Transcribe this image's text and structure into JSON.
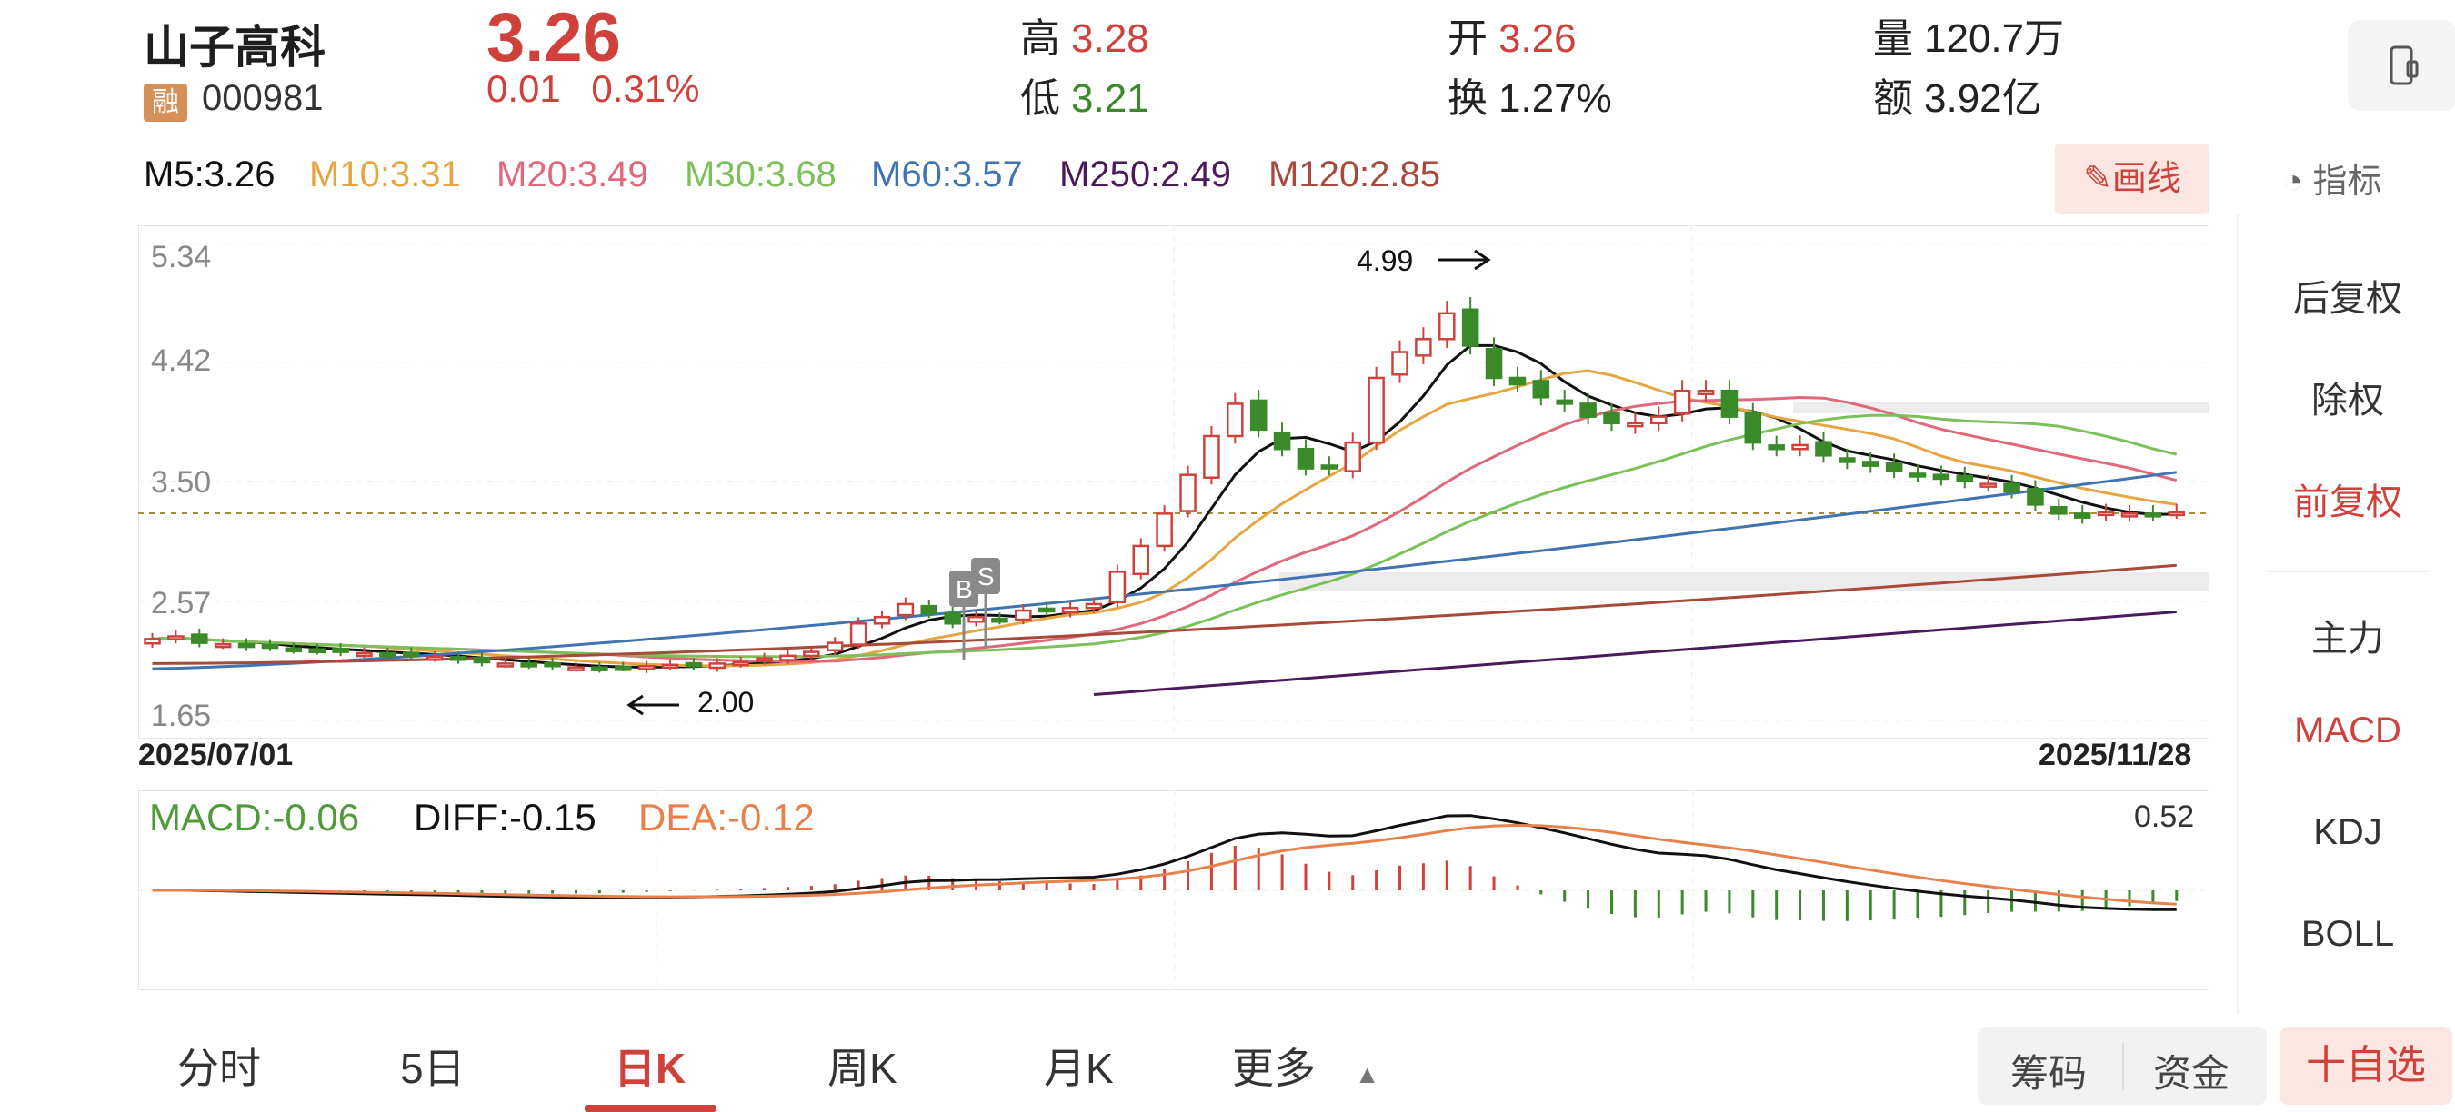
{
  "stock": {
    "name": "山子高科",
    "rong": "融",
    "code": "000981",
    "price": "3.26",
    "change": "0.01",
    "change_pct": "0.31%"
  },
  "quote": {
    "high_label": "高",
    "high": "3.28",
    "low_label": "低",
    "low": "3.21",
    "open_label": "开",
    "open": "3.26",
    "turnover_label": "换",
    "turnover": "1.27%",
    "volume_label": "量",
    "volume": "120.7万",
    "amount_label": "额",
    "amount": "3.92亿"
  },
  "ma": {
    "m5": "M5:3.26",
    "m10": "M10:3.31",
    "m20": "M20:3.49",
    "m30": "M30:3.68",
    "m60": "M60:3.57",
    "m250": "M250:2.49",
    "m120": "M120:2.85"
  },
  "colors": {
    "red": "#d0413c",
    "green": "#3b8a2a",
    "m5": "#111111",
    "m10": "#e5a642",
    "m20": "#e0687a",
    "m30": "#7cc05a",
    "m60": "#3f74b0",
    "m250": "#4a1a5a",
    "m120": "#a84a3a"
  },
  "toolbar": {
    "draw_line": "画线",
    "indicator": "指标"
  },
  "price_axis": [
    "5.34",
    "4.42",
    "3.50",
    "2.57",
    "1.65"
  ],
  "dates": {
    "start": "2025/07/01",
    "end": "2025/11/28"
  },
  "annotations": {
    "high": "4.99",
    "low": "2.00",
    "buy": "B",
    "sell": "S"
  },
  "macd": {
    "macd": "MACD:-0.06",
    "diff": "DIFF:-0.15",
    "dea": "DEA:-0.12",
    "max": "0.52"
  },
  "side_menu": [
    "后复权",
    "除权",
    "前复权",
    "主力",
    "MACD",
    "KDJ",
    "BOLL"
  ],
  "tabs": [
    "分时",
    "5日",
    "日K",
    "周K",
    "月K",
    "更多"
  ],
  "bottom_buttons": {
    "chips": "筹码",
    "funds": "资金",
    "add_watch": "十自选"
  },
  "icons": {
    "phone": "phone-icon",
    "gauge": "gauge-icon",
    "pencil": "pencil-icon",
    "more": "triangle-up-icon"
  },
  "chart_data": {
    "type": "candlestick",
    "x_range": [
      "2025/07/01",
      "2025/11/28"
    ],
    "y_range": [
      1.65,
      5.34
    ],
    "y_ticks": [
      5.34,
      4.42,
      3.5,
      2.57,
      1.65
    ],
    "last_price": 3.26,
    "marked_high": 4.99,
    "marked_low": 2.0,
    "close_series": [
      2.28,
      2.3,
      2.25,
      2.24,
      2.22,
      2.22,
      2.2,
      2.19,
      2.18,
      2.17,
      2.16,
      2.15,
      2.14,
      2.12,
      2.1,
      2.09,
      2.08,
      2.07,
      2.06,
      2.05,
      2.06,
      2.07,
      2.08,
      2.07,
      2.09,
      2.1,
      2.13,
      2.15,
      2.18,
      2.25,
      2.4,
      2.45,
      2.55,
      2.48,
      2.4,
      2.45,
      2.43,
      2.5,
      2.5,
      2.52,
      2.55,
      2.8,
      3.0,
      3.25,
      3.55,
      3.85,
      4.1,
      3.9,
      3.75,
      3.6,
      3.6,
      3.8,
      4.3,
      4.5,
      4.6,
      4.8,
      4.55,
      4.3,
      4.25,
      4.15,
      4.1,
      4.0,
      3.95,
      3.95,
      4.0,
      4.2,
      4.2,
      4.0,
      3.8,
      3.75,
      3.78,
      3.7,
      3.65,
      3.62,
      3.58,
      3.55,
      3.52,
      3.5,
      3.48,
      3.42,
      3.32,
      3.25,
      3.22,
      3.26,
      3.25,
      3.24,
      3.26
    ]
  }
}
